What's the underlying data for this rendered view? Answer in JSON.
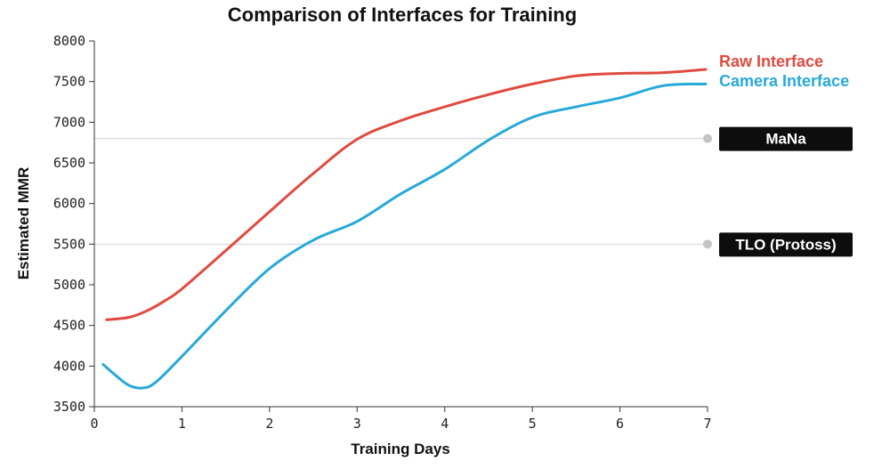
{
  "chart_data": {
    "type": "line",
    "title": "Comparison of Interfaces for Training",
    "xlabel": "Training Days",
    "ylabel": "Estimated MMR",
    "xlim": [
      0,
      7
    ],
    "ylim": [
      3500,
      8000
    ],
    "x_ticks": [
      0,
      1,
      2,
      3,
      4,
      5,
      6,
      7
    ],
    "y_ticks": [
      3500,
      4000,
      4500,
      5000,
      5500,
      6000,
      6500,
      7000,
      7500,
      8000
    ],
    "grid": false,
    "legend": "inline-right",
    "series": [
      {
        "name": "Raw Interface",
        "color": "#e04a3f",
        "x": [
          0.14,
          0.4,
          0.6,
          0.8,
          1.0,
          1.5,
          2.0,
          2.5,
          3.0,
          3.5,
          4.0,
          4.5,
          5.0,
          5.5,
          6.0,
          6.5,
          6.98
        ],
        "y": [
          4570,
          4600,
          4680,
          4800,
          4950,
          5420,
          5900,
          6370,
          6790,
          7020,
          7190,
          7340,
          7470,
          7570,
          7600,
          7610,
          7650
        ]
      },
      {
        "name": "Camera Interface",
        "color": "#27a9d8",
        "x": [
          0.1,
          0.25,
          0.4,
          0.55,
          0.7,
          1.0,
          1.5,
          2.0,
          2.5,
          3.0,
          3.5,
          4.0,
          4.5,
          5.0,
          5.5,
          6.0,
          6.5,
          6.98
        ],
        "y": [
          4020,
          3880,
          3760,
          3730,
          3800,
          4120,
          4680,
          5200,
          5550,
          5780,
          6120,
          6420,
          6780,
          7060,
          7190,
          7300,
          7450,
          7470
        ]
      }
    ],
    "reference_lines": [
      {
        "label": "MaNa",
        "value": 6800
      },
      {
        "label": "TLO (Protoss)",
        "value": 5500
      }
    ]
  }
}
